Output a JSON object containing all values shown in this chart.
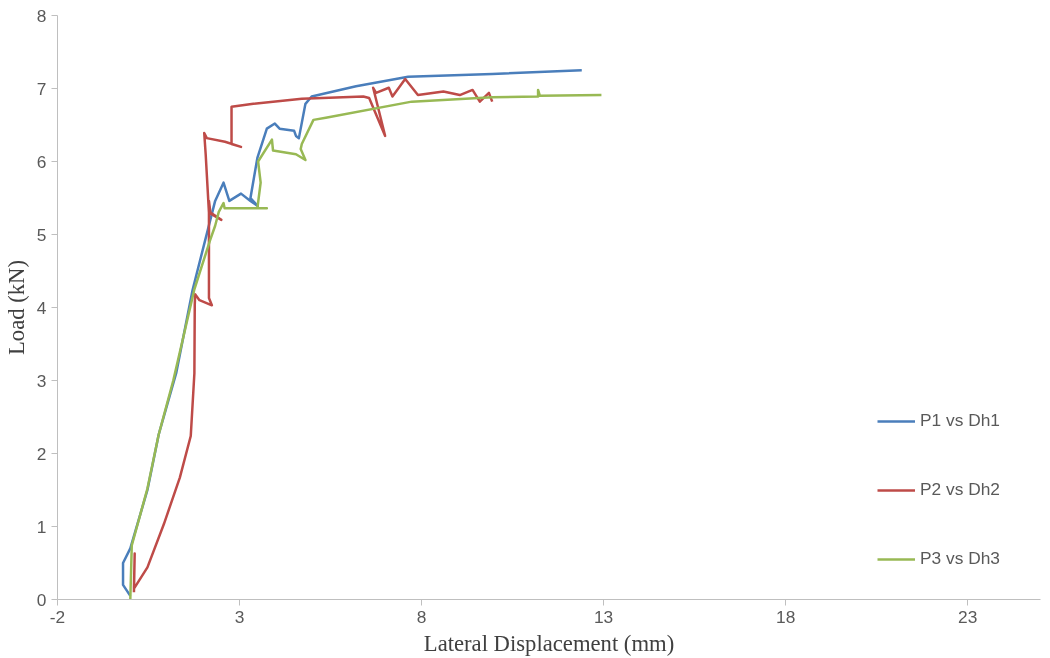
{
  "chart_data": {
    "type": "line",
    "xlabel": "Lateral Displacement (mm)",
    "ylabel": "Load (kN)",
    "xlim": [
      -2,
      25
    ],
    "xticks": [
      -2,
      3,
      8,
      13,
      18,
      23
    ],
    "ylim": [
      0,
      8
    ],
    "yticks": [
      0,
      1,
      2,
      3,
      4,
      5,
      6,
      7,
      8
    ],
    "grid": false,
    "legend": "right",
    "marker": "none",
    "line_style": "solid",
    "series": [
      {
        "name": "P1 vs Dh1",
        "color": "#4a7ebb",
        "x": [
          0,
          -0.2,
          -0.2,
          0,
          0.47,
          0.78,
          1.26,
          1.71,
          2.33,
          2.56,
          2.72,
          3.04,
          3.3,
          3.5,
          3.3,
          3.49,
          3.75,
          3.97,
          4.1,
          4.5,
          4.55,
          4.63,
          4.81,
          4.98,
          6.2,
          7.63,
          9.94,
          12.4
        ],
        "values": [
          0.05,
          0.2,
          0.5,
          0.7,
          1.5,
          2.26,
          3.1,
          4.24,
          5.46,
          5.71,
          5.46,
          5.56,
          5.46,
          5.39,
          5.5,
          6.05,
          6.45,
          6.52,
          6.45,
          6.42,
          6.35,
          6.32,
          6.79,
          6.89,
          7.03,
          7.16,
          7.2,
          7.25
        ]
      },
      {
        "name": "P2 vs Dh2",
        "color": "#be4b48",
        "x": [
          0.1,
          0.12,
          0.1,
          0.47,
          0.92,
          1.36,
          1.66,
          1.76,
          1.77,
          1.78,
          1.9,
          2.24,
          2.16,
          2.16,
          2.2,
          2.5,
          2.16,
          2.07,
          2.03,
          2.1,
          2.6,
          3.04,
          2.78,
          2.78,
          3.38,
          4.71,
          6.4,
          6.56,
          7.0,
          6.67,
          6.75,
          7.1,
          7.2,
          7.55,
          7.9,
          8.6,
          9.05,
          9.4,
          9.6,
          9.85,
          9.94
        ],
        "values": [
          0.1,
          0.63,
          0.15,
          0.44,
          1.03,
          1.67,
          2.24,
          3.1,
          4.03,
          4.18,
          4.1,
          4.03,
          4.13,
          5.46,
          5.3,
          5.2,
          5.3,
          6.1,
          6.39,
          6.32,
          6.27,
          6.2,
          6.24,
          6.75,
          6.79,
          6.86,
          6.89,
          6.87,
          6.35,
          7.01,
          6.94,
          7.01,
          6.89,
          7.13,
          6.91,
          6.96,
          6.91,
          6.98,
          6.82,
          6.94,
          6.82
        ]
      },
      {
        "name": "P3 vs Dh3",
        "color": "#98b954",
        "x": [
          0,
          0.04,
          0.47,
          0.78,
          1.18,
          1.76,
          2.19,
          2.33,
          2.43,
          2.56,
          2.59,
          3.3,
          3.75,
          3.49,
          3.58,
          3.51,
          3.89,
          3.92,
          4.55,
          4.81,
          4.68,
          4.71,
          5.03,
          5.37,
          7.73,
          9.94,
          11.2,
          11.2,
          11.25,
          12.94
        ],
        "values": [
          0,
          0.74,
          1.52,
          2.26,
          3.0,
          4.25,
          4.92,
          5.12,
          5.31,
          5.43,
          5.36,
          5.36,
          5.36,
          5.36,
          5.71,
          6.0,
          6.3,
          6.15,
          6.1,
          6.02,
          6.17,
          6.24,
          6.57,
          6.6,
          6.82,
          6.88,
          6.89,
          6.98,
          6.9,
          6.91
        ]
      }
    ]
  }
}
